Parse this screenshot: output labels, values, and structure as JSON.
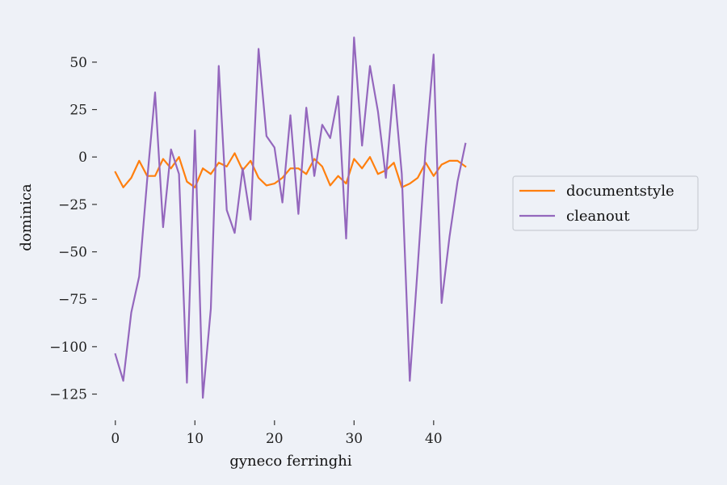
{
  "chart_data": {
    "type": "line",
    "title": "",
    "xlabel": "gyneco ferringhi",
    "ylabel": "dominica",
    "xlim": [
      -1.5,
      45.5
    ],
    "ylim": [
      -135,
      67
    ],
    "xticks": [
      0,
      10,
      20,
      30,
      40
    ],
    "yticks": [
      -125,
      -100,
      -75,
      -50,
      -25,
      0,
      25,
      50
    ],
    "grid": false,
    "legend_position": "right",
    "x": [
      0,
      1,
      2,
      3,
      4,
      5,
      6,
      7,
      8,
      9,
      10,
      11,
      12,
      13,
      14,
      15,
      16,
      17,
      18,
      19,
      20,
      21,
      22,
      23,
      24,
      25,
      26,
      27,
      28,
      29,
      30,
      31,
      32,
      33,
      34,
      35,
      36,
      37,
      38,
      39,
      40,
      41,
      42,
      43,
      44
    ],
    "series": [
      {
        "name": "documentstyle",
        "color": "#ff7f0e",
        "values": [
          -8,
          -16,
          -11,
          -2,
          -10,
          -10,
          -1,
          -6,
          0,
          -13,
          -16,
          -6,
          -9,
          -3,
          -5,
          2,
          -7,
          -2,
          -11,
          -15,
          -14,
          -11,
          -6,
          -6,
          -9,
          -1,
          -5,
          -15,
          -10,
          -14,
          -1,
          -6,
          0,
          -9,
          -7,
          -3,
          -16,
          -14,
          -11,
          -3,
          -10,
          -4,
          -2,
          -2,
          -5
        ]
      },
      {
        "name": "cleanout",
        "color": "#9467bd",
        "values": [
          -104,
          -118,
          -82,
          -63,
          -12,
          34,
          -37,
          4,
          -9,
          -119,
          14,
          -127,
          -80,
          48,
          -28,
          -40,
          -6,
          -33,
          57,
          11,
          5,
          -24,
          22,
          -30,
          26,
          -10,
          17,
          10,
          32,
          -43,
          63,
          6,
          48,
          24,
          -11,
          38,
          -9,
          -118,
          -58,
          5,
          54,
          -77,
          -42,
          -13,
          7
        ]
      }
    ]
  }
}
